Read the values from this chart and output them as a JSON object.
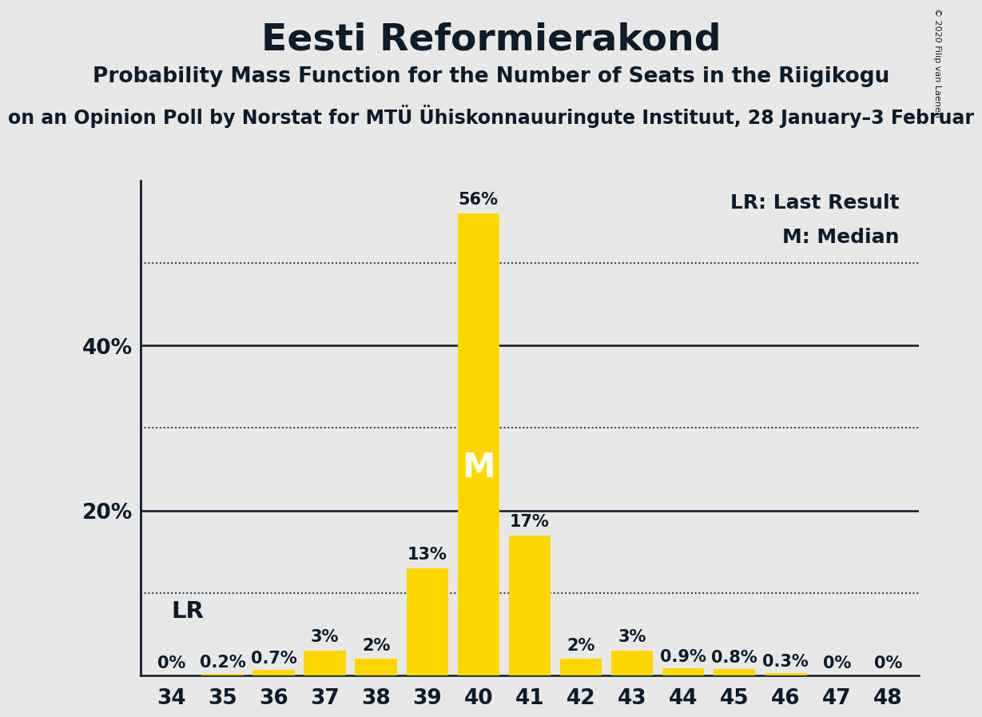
{
  "title": "Eesti Reformierakond",
  "subtitle": "Probability Mass Function for the Number of Seats in the Riigikogu",
  "subsubtitle": "on an Opinion Poll by Norstat for MTÜ Ühiskonnauuringute Instituut, 28 January–3 Februar",
  "copyright": "© 2020 Filip van Laenen",
  "seats": [
    34,
    35,
    36,
    37,
    38,
    39,
    40,
    41,
    42,
    43,
    44,
    45,
    46,
    47,
    48
  ],
  "probabilities": [
    0.0,
    0.2,
    0.7,
    3.0,
    2.0,
    13.0,
    56.0,
    17.0,
    2.0,
    3.0,
    0.9,
    0.8,
    0.3,
    0.0,
    0.0
  ],
  "bar_labels": [
    "0%",
    "0.2%",
    "0.7%",
    "3%",
    "2%",
    "13%",
    "56%",
    "17%",
    "2%",
    "3%",
    "0.9%",
    "0.8%",
    "0.3%",
    "0%",
    "0%"
  ],
  "bar_color": "#FFD700",
  "background_color": "#E8E8E8",
  "median_seat": 40,
  "last_result_seat": 34,
  "ylim": [
    0,
    60
  ],
  "yticks": [
    0,
    20,
    40
  ],
  "dotted_lines": [
    10,
    30,
    50
  ],
  "lr_label": "LR",
  "median_label": "M",
  "legend_lr": "LR: Last Result",
  "legend_m": "M: Median",
  "title_fontsize": 34,
  "subtitle_fontsize": 19,
  "subsubtitle_fontsize": 17,
  "text_color": "#0D1B2A",
  "bar_label_fontsize": 15,
  "axis_tick_fontsize": 19,
  "lr_fontsize": 21,
  "median_fontsize": 30,
  "legend_fontsize": 18,
  "copyright_fontsize": 8
}
